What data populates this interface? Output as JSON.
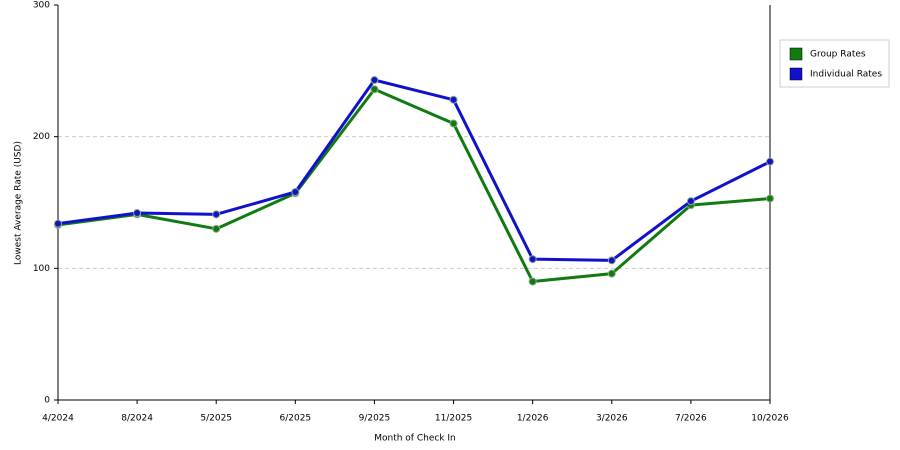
{
  "chart_data": {
    "type": "line",
    "x_label": "Month of Check In",
    "y_label": "Lowest Average Rate (USD)",
    "categories": [
      "4/2024",
      "8/2024",
      "5/2025",
      "6/2025",
      "9/2025",
      "11/2025",
      "1/2026",
      "3/2026",
      "7/2026",
      "10/2026"
    ],
    "series": [
      {
        "name": "Group Rates",
        "color": "#117a11",
        "values": [
          133,
          141,
          130,
          157,
          236,
          210,
          90,
          96,
          148,
          153
        ]
      },
      {
        "name": "Individual Rates",
        "color": "#1111cc",
        "values": [
          134,
          142,
          141,
          158,
          243,
          228,
          107,
          106,
          151,
          181
        ]
      }
    ],
    "ylim": [
      0,
      300
    ],
    "yticks": [
      0,
      100,
      200,
      300
    ],
    "grid": true,
    "legend": "right"
  }
}
